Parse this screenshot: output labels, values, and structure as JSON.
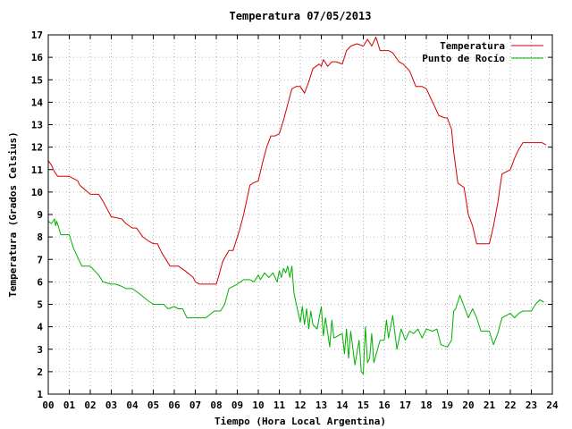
{
  "chart_data": {
    "type": "line",
    "title": "Temperatura 07/05/2013",
    "xlabel": "Tiempo (Hora Local Argentina)",
    "ylabel": "Temperatura (Grados Celsius)",
    "xlim": [
      0,
      24
    ],
    "ylim": [
      1,
      17
    ],
    "x_ticks": [
      "00",
      "01",
      "02",
      "03",
      "04",
      "05",
      "06",
      "07",
      "08",
      "09",
      "10",
      "11",
      "12",
      "13",
      "14",
      "15",
      "16",
      "17",
      "18",
      "19",
      "20",
      "21",
      "22",
      "23",
      "24"
    ],
    "y_ticks": [
      "1",
      "2",
      "3",
      "4",
      "5",
      "6",
      "7",
      "8",
      "9",
      "10",
      "11",
      "12",
      "13",
      "14",
      "15",
      "16",
      "17"
    ],
    "grid": true,
    "legend_position": "top-right",
    "series": [
      {
        "name": "Temperatura",
        "color": "#d40000",
        "x": [
          0,
          0.15,
          0.3,
          0.45,
          1.0,
          1.4,
          1.5,
          2.0,
          2.4,
          2.6,
          3.0,
          3.5,
          3.7,
          4.0,
          4.2,
          4.5,
          4.8,
          5.0,
          5.2,
          5.4,
          5.8,
          6.0,
          6.2,
          6.5,
          6.9,
          7.0,
          7.2,
          7.5,
          8.0,
          8.1,
          8.3,
          8.6,
          8.8,
          9.1,
          9.3,
          9.6,
          9.75,
          10.0,
          10.2,
          10.4,
          10.6,
          10.8,
          11.0,
          11.2,
          11.4,
          11.6,
          11.8,
          12.0,
          12.2,
          12.4,
          12.6,
          12.9,
          13.0,
          13.1,
          13.3,
          13.5,
          13.7,
          14.0,
          14.2,
          14.4,
          14.7,
          15.0,
          15.2,
          15.4,
          15.6,
          15.8,
          16.0,
          16.2,
          16.4,
          16.7,
          16.9,
          17.2,
          17.5,
          17.8,
          18.0,
          18.3,
          18.6,
          18.9,
          19.0,
          19.2,
          19.3,
          19.5,
          19.8,
          20.0,
          20.2,
          20.4,
          20.5,
          20.7,
          21.0,
          21.2,
          21.4,
          21.6,
          21.8,
          22.0,
          22.2,
          22.4,
          22.6,
          23.0,
          23.3,
          23.5,
          23.7
        ],
        "y": [
          11.4,
          11.2,
          10.9,
          10.7,
          10.7,
          10.5,
          10.3,
          9.9,
          9.9,
          9.6,
          8.9,
          8.8,
          8.6,
          8.4,
          8.4,
          8.0,
          7.8,
          7.7,
          7.7,
          7.3,
          6.7,
          6.7,
          6.7,
          6.5,
          6.2,
          6.0,
          5.9,
          5.9,
          5.9,
          6.2,
          6.9,
          7.4,
          7.4,
          8.3,
          9.0,
          10.3,
          10.4,
          10.5,
          11.3,
          12.0,
          12.5,
          12.5,
          12.6,
          13.2,
          13.9,
          14.6,
          14.7,
          14.7,
          14.4,
          14.9,
          15.5,
          15.7,
          15.6,
          15.9,
          15.6,
          15.8,
          15.8,
          15.7,
          16.3,
          16.5,
          16.6,
          16.5,
          16.8,
          16.5,
          16.9,
          16.3,
          16.3,
          16.3,
          16.2,
          15.8,
          15.7,
          15.4,
          14.7,
          14.7,
          14.6,
          14.0,
          13.4,
          13.3,
          13.3,
          12.8,
          11.8,
          10.4,
          10.2,
          9.0,
          8.5,
          7.7,
          7.7,
          7.7,
          7.7,
          8.5,
          9.5,
          10.8,
          10.9,
          11.0,
          11.5,
          11.9,
          12.2,
          12.2,
          12.2,
          12.2,
          12.1
        ]
      },
      {
        "name": "Punto de Rocío",
        "color": "#00b000",
        "x": [
          0,
          0.15,
          0.3,
          0.35,
          0.4,
          0.5,
          0.6,
          1.0,
          1.2,
          1.6,
          2.0,
          2.4,
          2.6,
          3.0,
          3.2,
          3.5,
          3.7,
          4.0,
          4.3,
          4.7,
          5.0,
          5.5,
          5.6,
          5.7,
          6.0,
          6.2,
          6.4,
          6.6,
          7.0,
          7.5,
          7.9,
          8.2,
          8.4,
          8.6,
          9.0,
          9.3,
          9.6,
          9.8,
          10.0,
          10.1,
          10.3,
          10.5,
          10.7,
          10.9,
          11.0,
          11.1,
          11.2,
          11.3,
          11.4,
          11.5,
          11.6,
          11.7,
          12.0,
          12.1,
          12.2,
          12.3,
          12.4,
          12.5,
          12.6,
          12.8,
          13.0,
          13.1,
          13.2,
          13.4,
          13.5,
          13.6,
          13.8,
          14.0,
          14.1,
          14.2,
          14.3,
          14.4,
          14.6,
          14.8,
          14.9,
          15.0,
          15.1,
          15.2,
          15.3,
          15.4,
          15.5,
          15.8,
          16.0,
          16.1,
          16.2,
          16.4,
          16.6,
          16.8,
          17.0,
          17.2,
          17.4,
          17.6,
          17.8,
          18.0,
          18.3,
          18.5,
          18.7,
          19.0,
          19.2,
          19.3,
          19.4,
          19.6,
          19.8,
          20.0,
          20.2,
          20.4,
          20.6,
          20.8,
          21.0,
          21.2,
          21.4,
          21.6,
          21.8,
          22.0,
          22.2,
          22.4,
          22.6,
          22.8,
          23.0,
          23.2,
          23.4,
          23.6
        ],
        "y": [
          8.7,
          8.6,
          8.8,
          8.5,
          8.7,
          8.4,
          8.1,
          8.1,
          7.5,
          6.7,
          6.7,
          6.3,
          6.0,
          5.9,
          5.9,
          5.8,
          5.7,
          5.7,
          5.5,
          5.2,
          5.0,
          5.0,
          4.9,
          4.8,
          4.9,
          4.8,
          4.8,
          4.4,
          4.4,
          4.4,
          4.7,
          4.7,
          5.0,
          5.7,
          5.9,
          6.1,
          6.1,
          6.0,
          6.3,
          6.1,
          6.4,
          6.2,
          6.4,
          6.0,
          6.5,
          6.2,
          6.6,
          6.4,
          6.7,
          6.2,
          6.7,
          5.5,
          4.2,
          4.9,
          4.1,
          4.8,
          3.9,
          4.7,
          4.1,
          3.9,
          4.9,
          3.6,
          4.4,
          3.1,
          4.3,
          3.5,
          3.6,
          3.7,
          2.8,
          3.9,
          2.6,
          3.8,
          2.3,
          3.4,
          2.0,
          1.9,
          4.0,
          2.4,
          2.6,
          3.7,
          2.4,
          3.4,
          3.4,
          4.3,
          3.5,
          4.5,
          3.0,
          3.9,
          3.4,
          3.8,
          3.7,
          3.9,
          3.5,
          3.9,
          3.8,
          3.9,
          3.2,
          3.1,
          3.4,
          4.7,
          4.8,
          5.4,
          4.9,
          4.4,
          4.8,
          4.4,
          3.8,
          3.8,
          3.8,
          3.2,
          3.7,
          4.4,
          4.5,
          4.6,
          4.4,
          4.6,
          4.7,
          4.7,
          4.7,
          5.0,
          5.2,
          5.1
        ]
      }
    ]
  }
}
